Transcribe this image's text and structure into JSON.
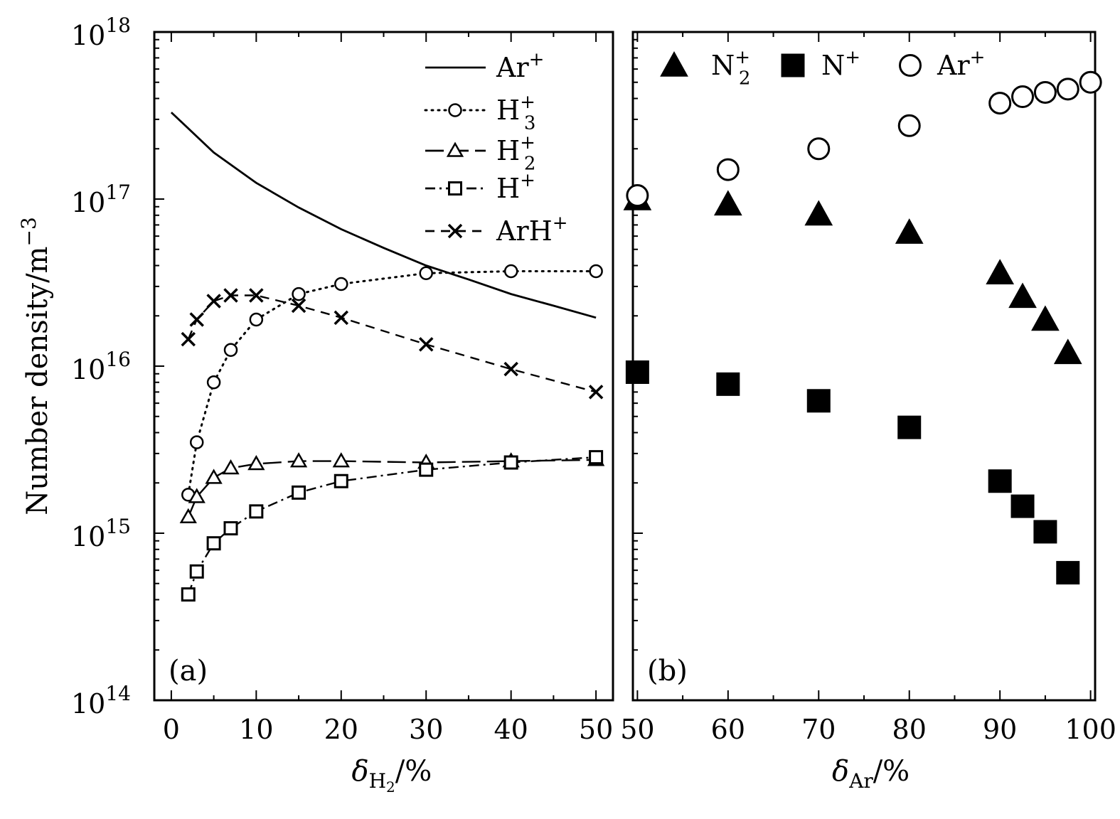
{
  "chart_data": [
    {
      "type": "line",
      "panel_label": "(a)",
      "xlabel": "δ",
      "xlabel_sub": "H",
      "xlabel_subsub": "2",
      "xlabel_unit": "/%",
      "ylabel": "Number density/m",
      "ylabel_sup": "−3",
      "ylog": true,
      "ylim": [
        100000000000000.0,
        1e+18
      ],
      "xlim": [
        -2,
        52
      ],
      "x_ticks": [
        "0",
        "10",
        "20",
        "30",
        "40",
        "50"
      ],
      "x_tick_values": [
        0,
        10,
        20,
        30,
        40,
        50
      ],
      "y_ticks": [
        {
          "base": "10",
          "exp": "14",
          "value": 100000000000000.0
        },
        {
          "base": "10",
          "exp": "15",
          "value": 1000000000000000.0
        },
        {
          "base": "10",
          "exp": "16",
          "value": 1e+16
        },
        {
          "base": "10",
          "exp": "17",
          "value": 1e+17
        },
        {
          "base": "10",
          "exp": "18",
          "value": 1e+18
        }
      ],
      "legend_position": "top-right",
      "series": [
        {
          "name": "Ar",
          "name_sub": "",
          "name_sup": "+",
          "style": "solid",
          "marker": "none",
          "x": [
            0,
            5,
            10,
            15,
            20,
            25,
            30,
            35,
            40,
            45,
            50
          ],
          "values": [
            3.3e+17,
            1.9e+17,
            1.25e+17,
            8.9e+16,
            6.6e+16,
            5.1e+16,
            4e+16,
            3.3e+16,
            2.7e+16,
            2.3e+16,
            1.95e+16
          ]
        },
        {
          "name": "H",
          "name_sub": "3",
          "name_sup": "+",
          "style": "dotted",
          "marker": "circle",
          "x": [
            2,
            3,
            5,
            7,
            10,
            15,
            20,
            30,
            40,
            50
          ],
          "values": [
            1700000000000000.0,
            3500000000000000.0,
            8000000000000000.0,
            1.25e+16,
            1.9e+16,
            2.7e+16,
            3.1e+16,
            3.6e+16,
            3.7e+16,
            3.7e+16
          ]
        },
        {
          "name": "H",
          "name_sub": "2",
          "name_sup": "+",
          "style": "longdash",
          "marker": "triangle",
          "x": [
            2,
            3,
            5,
            7,
            10,
            15,
            20,
            30,
            40,
            50
          ],
          "values": [
            1250000000000000.0,
            1650000000000000.0,
            2150000000000000.0,
            2450000000000000.0,
            2600000000000000.0,
            2700000000000000.0,
            2700000000000000.0,
            2650000000000000.0,
            2700000000000000.0,
            2750000000000000.0
          ]
        },
        {
          "name": "H",
          "name_sub": "",
          "name_sup": "+",
          "style": "dashdot",
          "marker": "square",
          "x": [
            2,
            3,
            5,
            7,
            10,
            15,
            20,
            30,
            40,
            50
          ],
          "values": [
            430000000000000.0,
            590000000000000.0,
            870000000000000.0,
            1070000000000000.0,
            1350000000000000.0,
            1750000000000000.0,
            2050000000000000.0,
            2400000000000000.0,
            2650000000000000.0,
            2850000000000000.0
          ]
        },
        {
          "name": "ArH",
          "name_sub": "",
          "name_sup": "+",
          "style": "dashed",
          "marker": "cross",
          "x": [
            2,
            3,
            5,
            7,
            10,
            15,
            20,
            30,
            40,
            50
          ],
          "values": [
            1.45e+16,
            1.9e+16,
            2.45e+16,
            2.65e+16,
            2.65e+16,
            2.3e+16,
            1.95e+16,
            1.35e+16,
            9600000000000000.0,
            7000000000000000.0
          ]
        }
      ]
    },
    {
      "type": "scatter",
      "panel_label": "(b)",
      "xlabel": "δ",
      "xlabel_sub": "Ar",
      "xlabel_unit": "/%",
      "ylog": true,
      "ylim": [
        100000000000000.0,
        1e+18
      ],
      "xlim": [
        49.5,
        100.5
      ],
      "x_ticks": [
        "50",
        "60",
        "70",
        "80",
        "90",
        "100"
      ],
      "x_tick_values": [
        50,
        60,
        70,
        80,
        90,
        100
      ],
      "legend_position": "top",
      "series": [
        {
          "name": "N",
          "name_sub": "2",
          "name_sup": "+",
          "marker": "filled-triangle",
          "x": [
            50,
            60,
            70,
            80,
            90,
            92.5,
            95,
            97.5
          ],
          "values": [
            1e+17,
            9.3e+16,
            8.1e+16,
            6.3e+16,
            3.6e+16,
            2.6e+16,
            1.9e+16,
            1.2e+16
          ]
        },
        {
          "name": "N",
          "name_sub": "",
          "name_sup": "+",
          "marker": "filled-square",
          "x": [
            50,
            60,
            70,
            80,
            90,
            92.5,
            95,
            97.5
          ],
          "values": [
            9200000000000000.0,
            7800000000000000.0,
            6200000000000000.0,
            4300000000000000.0,
            2050000000000000.0,
            1450000000000000.0,
            1020000000000000.0,
            580000000000000.0
          ]
        },
        {
          "name": "Ar",
          "name_sub": "",
          "name_sup": "+",
          "marker": "open-circle",
          "x": [
            50,
            60,
            70,
            80,
            90,
            92.5,
            95,
            97.5,
            100
          ],
          "values": [
            1.05e+17,
            1.5e+17,
            2e+17,
            2.75e+17,
            3.75e+17,
            4.1e+17,
            4.35e+17,
            4.55e+17,
            5e+17
          ]
        }
      ]
    }
  ]
}
